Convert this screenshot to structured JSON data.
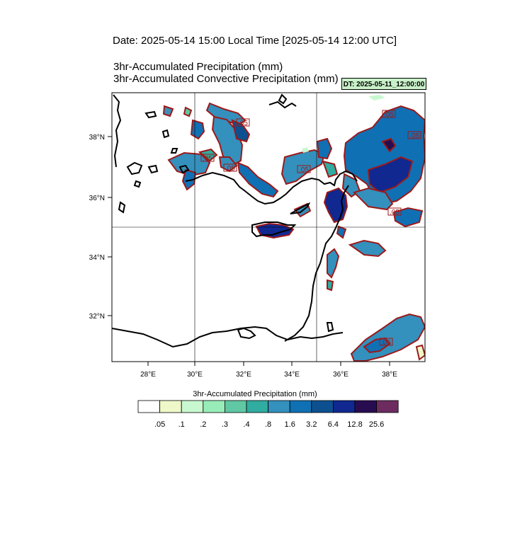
{
  "header": {
    "date_line": "Date: 2025-05-14  15:00 Local Time [2025-05-14  12:00 UTC]",
    "title_1": "3hr-Accumulated Precipitation   (mm)",
    "title_2": "3hr-Accumulated Convective Precipitation   (mm)",
    "dt_badge": "DT: 2025-05-11_12:00:00"
  },
  "map": {
    "lon_labels": [
      "28°E",
      "30°E",
      "32°E",
      "34°E",
      "36°E",
      "38°E"
    ],
    "lat_labels": [
      "38°N",
      "36°N",
      "34°N",
      "32°N"
    ],
    "contour_labels": [
      ".05",
      ".05",
      ".05",
      ".05",
      ".05",
      ".05",
      ".05",
      ".05"
    ],
    "colors": {
      "coast": "#000000",
      "contour": "#9b1a1a",
      "grid": "#000000"
    }
  },
  "colorbar": {
    "title": "3hr-Accumulated Precipitation  (mm)",
    "labels": [
      ".05",
      ".1",
      ".2",
      ".3",
      ".4",
      ".8",
      "1.6",
      "3.2",
      "6.4",
      "12.8",
      "25.6"
    ],
    "colors": [
      "#ffffff",
      "#eef8c8",
      "#c8f8d0",
      "#98ecb8",
      "#60c8a4",
      "#30aca0",
      "#3490bc",
      "#1070b4",
      "#0c5090",
      "#102890",
      "#280c50",
      "#6c2c60"
    ]
  }
}
